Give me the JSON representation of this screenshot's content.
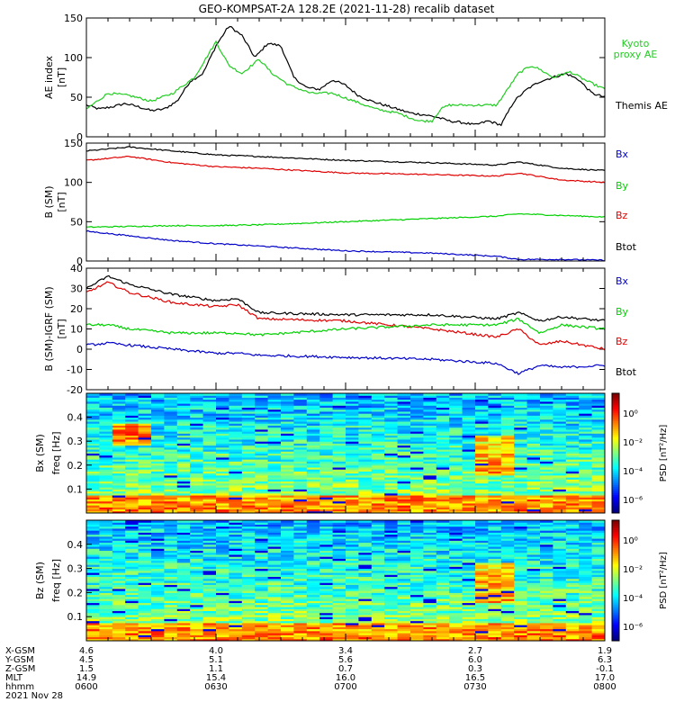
{
  "title": "GEO-KOMPSAT-2A 128.2E (2021-11-28) recalib dataset",
  "colors": {
    "black": "#000000",
    "red": "#e00000",
    "green": "#00d000",
    "blue": "#0000c8",
    "kyoto": "#22cc22"
  },
  "chart_data": [
    {
      "type": "line",
      "ylabel": "AE index [nT]",
      "ylim": [
        0,
        150
      ],
      "yticks": [
        0,
        50,
        100,
        150
      ],
      "x_range_hhmm": [
        "0600",
        "0800"
      ],
      "series": [
        {
          "name": "Themis AE",
          "color": "black",
          "label_color": "black",
          "x": [
            0,
            3,
            6,
            9,
            12,
            15,
            18,
            21,
            24,
            27,
            30,
            33,
            36,
            39,
            42,
            45,
            48,
            51,
            54,
            57,
            60,
            63,
            66,
            69,
            72,
            75,
            78,
            81,
            84,
            87,
            90,
            93,
            96,
            99,
            102,
            105,
            108,
            111,
            114,
            117,
            120
          ],
          "values": [
            40,
            35,
            38,
            42,
            38,
            33,
            35,
            45,
            70,
            80,
            115,
            140,
            128,
            100,
            118,
            115,
            75,
            62,
            60,
            72,
            65,
            52,
            45,
            40,
            35,
            30,
            28,
            25,
            20,
            18,
            15,
            20,
            15,
            45,
            60,
            70,
            75,
            80,
            72,
            55,
            50
          ]
        },
        {
          "name": "Kyoto proxy AE",
          "color": "kyoto",
          "label_color": "kyoto",
          "x": [
            0,
            5,
            10,
            15,
            20,
            25,
            30,
            33,
            36,
            40,
            43,
            47,
            52,
            57,
            62,
            67,
            72,
            77,
            80,
            82,
            84,
            88,
            95,
            100,
            103,
            105,
            108,
            112,
            116,
            120
          ],
          "values": [
            35,
            55,
            52,
            45,
            55,
            75,
            120,
            90,
            80,
            98,
            80,
            65,
            55,
            55,
            45,
            35,
            30,
            20,
            20,
            35,
            40,
            40,
            40,
            80,
            90,
            85,
            75,
            82,
            70,
            60
          ]
        }
      ]
    },
    {
      "type": "line",
      "ylabel": "B (SM) [nT]",
      "ylim": [
        0,
        150
      ],
      "yticks": [
        0,
        50,
        100,
        150
      ],
      "legend": [
        "Bx",
        "By",
        "Bz",
        "Btot"
      ],
      "series": [
        {
          "name": "Btot",
          "color": "black",
          "x": [
            0,
            10,
            20,
            30,
            40,
            60,
            80,
            95,
            100,
            110,
            120
          ],
          "values": [
            140,
            145,
            140,
            135,
            133,
            128,
            125,
            122,
            126,
            118,
            115
          ]
        },
        {
          "name": "Bz",
          "color": "red",
          "x": [
            0,
            10,
            20,
            30,
            40,
            60,
            80,
            95,
            100,
            110,
            120
          ],
          "values": [
            128,
            133,
            125,
            120,
            118,
            112,
            110,
            108,
            112,
            103,
            100
          ]
        },
        {
          "name": "By",
          "color": "green",
          "x": [
            0,
            10,
            20,
            30,
            40,
            60,
            80,
            95,
            100,
            110,
            120
          ],
          "values": [
            43,
            44,
            45,
            45,
            46,
            50,
            54,
            57,
            60,
            58,
            56
          ]
        },
        {
          "name": "Bx",
          "color": "blue",
          "x": [
            0,
            10,
            20,
            30,
            40,
            60,
            80,
            95,
            100,
            110,
            120
          ],
          "values": [
            38,
            32,
            26,
            22,
            19,
            13,
            10,
            6,
            2,
            2,
            1
          ]
        }
      ]
    },
    {
      "type": "line",
      "ylabel": "B (SM)-IGRF (SM) [nT]",
      "ylim": [
        -20,
        40
      ],
      "yticks": [
        -20,
        -10,
        0,
        10,
        20,
        30,
        40
      ],
      "legend": [
        "Bx",
        "By",
        "Bz",
        "Btot"
      ],
      "series": [
        {
          "name": "Btot",
          "color": "black",
          "x": [
            0,
            5,
            10,
            20,
            30,
            35,
            40,
            60,
            80,
            95,
            100,
            105,
            110,
            120
          ],
          "values": [
            30,
            36,
            32,
            27,
            24,
            25,
            18,
            17,
            17,
            15,
            18,
            14,
            16,
            14
          ]
        },
        {
          "name": "Bz",
          "color": "red",
          "x": [
            0,
            5,
            10,
            20,
            30,
            35,
            40,
            60,
            80,
            95,
            100,
            105,
            110,
            120
          ],
          "values": [
            28,
            33,
            28,
            23,
            21,
            22,
            15,
            14,
            10,
            6,
            10,
            2,
            4,
            0
          ]
        },
        {
          "name": "By",
          "color": "green",
          "x": [
            0,
            5,
            10,
            20,
            30,
            35,
            40,
            60,
            80,
            95,
            100,
            105,
            110,
            120
          ],
          "values": [
            12,
            12,
            10,
            8,
            8,
            8,
            7,
            10,
            12,
            12,
            15,
            8,
            12,
            10
          ]
        },
        {
          "name": "Bx",
          "color": "blue",
          "x": [
            0,
            5,
            10,
            20,
            30,
            35,
            40,
            60,
            80,
            95,
            100,
            105,
            110,
            120
          ],
          "values": [
            2,
            3,
            2,
            0,
            -2,
            -2,
            -3,
            -4,
            -5,
            -7,
            -12,
            -8,
            -9,
            -8
          ]
        }
      ]
    },
    {
      "type": "heatmap",
      "ylabel": "Bx (SM) freq [Hz]",
      "yticks": [
        0.1,
        0.2,
        0.3,
        0.4
      ],
      "ylim": [
        0,
        0.5
      ],
      "colorbar_label": "PSD [nT²/Hz]",
      "colorbar_ticks": [
        "10⁰",
        "10⁻²",
        "10⁻⁴",
        "10⁻⁶"
      ]
    },
    {
      "type": "heatmap",
      "ylabel": "Bz (SM) freq [Hz]",
      "yticks": [
        0.1,
        0.2,
        0.3,
        0.4
      ],
      "ylim": [
        0,
        0.5
      ],
      "colorbar_label": "PSD [nT²/Hz]",
      "colorbar_ticks": [
        "10⁰",
        "10⁻²",
        "10⁻⁴",
        "10⁻⁶"
      ]
    }
  ],
  "ephemeris": {
    "rows": [
      {
        "label": "X-GSM",
        "values": [
          "4.6",
          "4.0",
          "3.4",
          "2.7",
          "1.9"
        ]
      },
      {
        "label": "Y-GSM",
        "values": [
          "4.5",
          "5.1",
          "5.6",
          "6.0",
          "6.3"
        ]
      },
      {
        "label": "Z-GSM",
        "values": [
          "1.5",
          "1.1",
          "0.7",
          "0.3",
          "-0.1"
        ]
      },
      {
        "label": "MLT",
        "values": [
          "14.9",
          "15.4",
          "16.0",
          "16.5",
          "17.0"
        ]
      },
      {
        "label": "hhmm",
        "values": [
          "0600",
          "0630",
          "0700",
          "0730",
          "0800"
        ]
      }
    ],
    "date": "2021 Nov 28"
  }
}
